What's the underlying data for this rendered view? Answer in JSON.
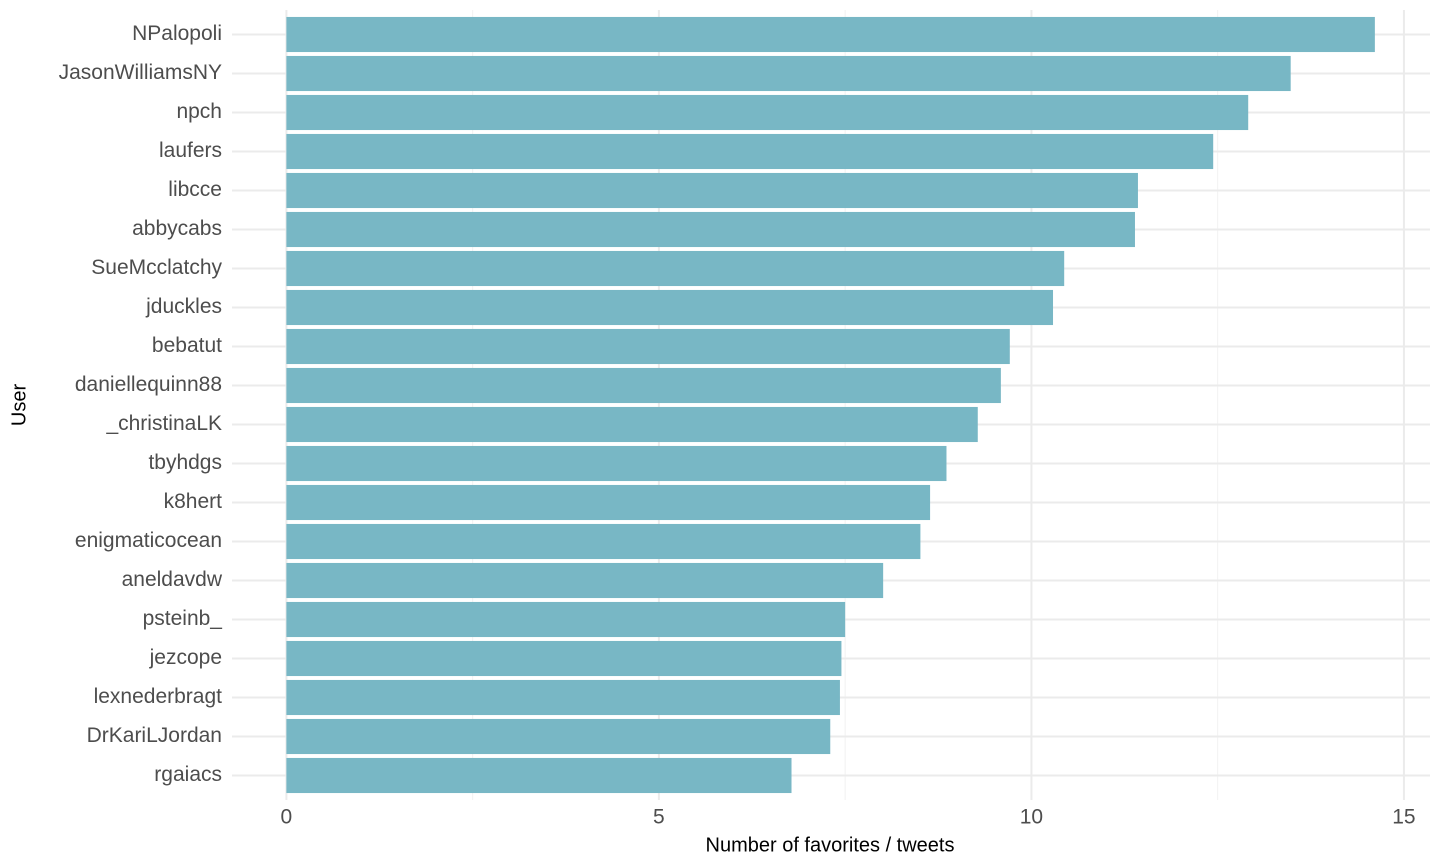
{
  "chart_data": {
    "type": "bar",
    "orientation": "horizontal",
    "x_label": "Number of favorites / tweets",
    "y_label": "User",
    "categories": [
      "NPalopoli",
      "JasonWilliamsNY",
      "npch",
      "laufers",
      "libcce",
      "abbycabs",
      "SueMcclatchy",
      "jduckles",
      "bebatut",
      "daniellequinn88",
      "_christinaLK",
      "tbyhdgs",
      "k8hert",
      "enigmaticocean",
      "aneldavdw",
      "psteinb_",
      "jezcope",
      "lexnederbragt",
      "DrKariLJordan",
      "rgaiacs"
    ],
    "values": [
      14.61,
      13.48,
      12.91,
      12.44,
      11.43,
      11.39,
      10.44,
      10.29,
      9.71,
      9.59,
      9.28,
      8.86,
      8.64,
      8.51,
      8.01,
      7.5,
      7.45,
      7.43,
      7.3,
      6.78
    ],
    "color": "#78b7c5",
    "xlim": [
      -0.73,
      15.35
    ],
    "xticks": [
      0,
      5,
      10,
      15
    ],
    "xminor": [
      2.5,
      7.5,
      12.5
    ],
    "grid": true
  }
}
